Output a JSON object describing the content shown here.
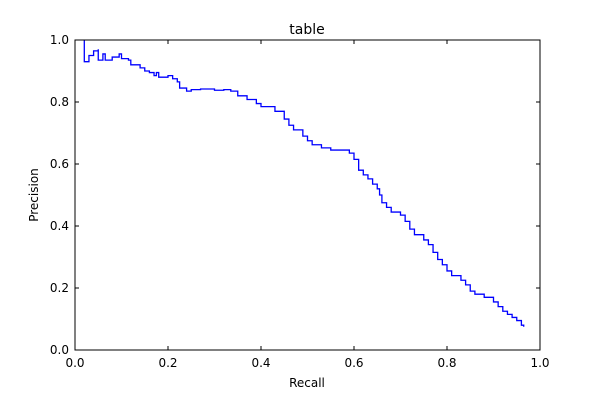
{
  "chart_data": {
    "type": "line",
    "title": "table",
    "xlabel": "Recall",
    "ylabel": "Precision",
    "xlim": [
      0.0,
      1.0
    ],
    "ylim": [
      0.0,
      1.0
    ],
    "x_ticks": [
      "0.0",
      "0.2",
      "0.4",
      "0.6",
      "0.8",
      "1.0"
    ],
    "y_ticks": [
      "0.0",
      "0.2",
      "0.4",
      "0.6",
      "0.8",
      "1.0"
    ],
    "grid": false,
    "legend": "none",
    "series": [
      {
        "color": "#0000ff",
        "style": "step",
        "points": [
          [
            0.02,
            1.0
          ],
          [
            0.02,
            0.93
          ],
          [
            0.03,
            0.95
          ],
          [
            0.04,
            0.965
          ],
          [
            0.05,
            0.97
          ],
          [
            0.05,
            0.935
          ],
          [
            0.06,
            0.955
          ],
          [
            0.065,
            0.935
          ],
          [
            0.08,
            0.945
          ],
          [
            0.095,
            0.955
          ],
          [
            0.1,
            0.94
          ],
          [
            0.115,
            0.935
          ],
          [
            0.12,
            0.92
          ],
          [
            0.14,
            0.91
          ],
          [
            0.15,
            0.9
          ],
          [
            0.16,
            0.895
          ],
          [
            0.17,
            0.885
          ],
          [
            0.175,
            0.895
          ],
          [
            0.18,
            0.88
          ],
          [
            0.2,
            0.885
          ],
          [
            0.21,
            0.875
          ],
          [
            0.22,
            0.865
          ],
          [
            0.225,
            0.845
          ],
          [
            0.24,
            0.835
          ],
          [
            0.25,
            0.84
          ],
          [
            0.27,
            0.842
          ],
          [
            0.3,
            0.838
          ],
          [
            0.32,
            0.84
          ],
          [
            0.335,
            0.835
          ],
          [
            0.35,
            0.82
          ],
          [
            0.37,
            0.808
          ],
          [
            0.39,
            0.795
          ],
          [
            0.4,
            0.785
          ],
          [
            0.42,
            0.785
          ],
          [
            0.43,
            0.77
          ],
          [
            0.45,
            0.745
          ],
          [
            0.46,
            0.725
          ],
          [
            0.47,
            0.71
          ],
          [
            0.49,
            0.69
          ],
          [
            0.5,
            0.675
          ],
          [
            0.51,
            0.662
          ],
          [
            0.53,
            0.652
          ],
          [
            0.55,
            0.645
          ],
          [
            0.57,
            0.645
          ],
          [
            0.59,
            0.635
          ],
          [
            0.6,
            0.615
          ],
          [
            0.61,
            0.58
          ],
          [
            0.62,
            0.565
          ],
          [
            0.63,
            0.552
          ],
          [
            0.64,
            0.535
          ],
          [
            0.65,
            0.52
          ],
          [
            0.655,
            0.5
          ],
          [
            0.66,
            0.475
          ],
          [
            0.67,
            0.46
          ],
          [
            0.68,
            0.445
          ],
          [
            0.7,
            0.435
          ],
          [
            0.71,
            0.415
          ],
          [
            0.72,
            0.39
          ],
          [
            0.73,
            0.372
          ],
          [
            0.75,
            0.355
          ],
          [
            0.76,
            0.34
          ],
          [
            0.77,
            0.315
          ],
          [
            0.78,
            0.292
          ],
          [
            0.79,
            0.275
          ],
          [
            0.8,
            0.255
          ],
          [
            0.81,
            0.24
          ],
          [
            0.83,
            0.225
          ],
          [
            0.84,
            0.21
          ],
          [
            0.85,
            0.19
          ],
          [
            0.86,
            0.18
          ],
          [
            0.88,
            0.17
          ],
          [
            0.9,
            0.155
          ],
          [
            0.91,
            0.14
          ],
          [
            0.92,
            0.125
          ],
          [
            0.93,
            0.115
          ],
          [
            0.94,
            0.105
          ],
          [
            0.95,
            0.095
          ],
          [
            0.96,
            0.08
          ],
          [
            0.965,
            0.075
          ]
        ]
      }
    ]
  }
}
